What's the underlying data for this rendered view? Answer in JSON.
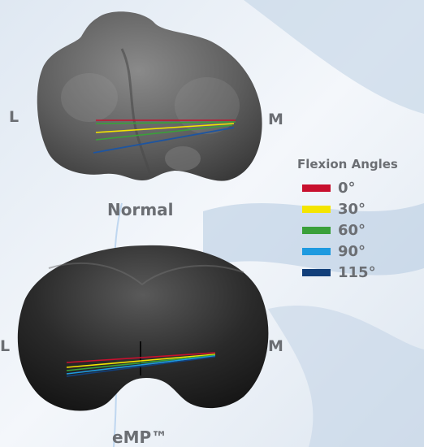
{
  "top_figure": {
    "label_left": "L",
    "label_right": "M",
    "caption": "Normal"
  },
  "bottom_figure": {
    "label_left": "L",
    "label_right": "M",
    "caption": "eMP™"
  },
  "legend": {
    "title": "Flexion Angles",
    "items": [
      {
        "label": "0°",
        "color": "#c8102e"
      },
      {
        "label": "30°",
        "color": "#f4e500"
      },
      {
        "label": "60°",
        "color": "#3aa03a"
      },
      {
        "label": "90°",
        "color": "#1e9ae0"
      },
      {
        "label": "115°",
        "color": "#123f7a"
      }
    ]
  }
}
